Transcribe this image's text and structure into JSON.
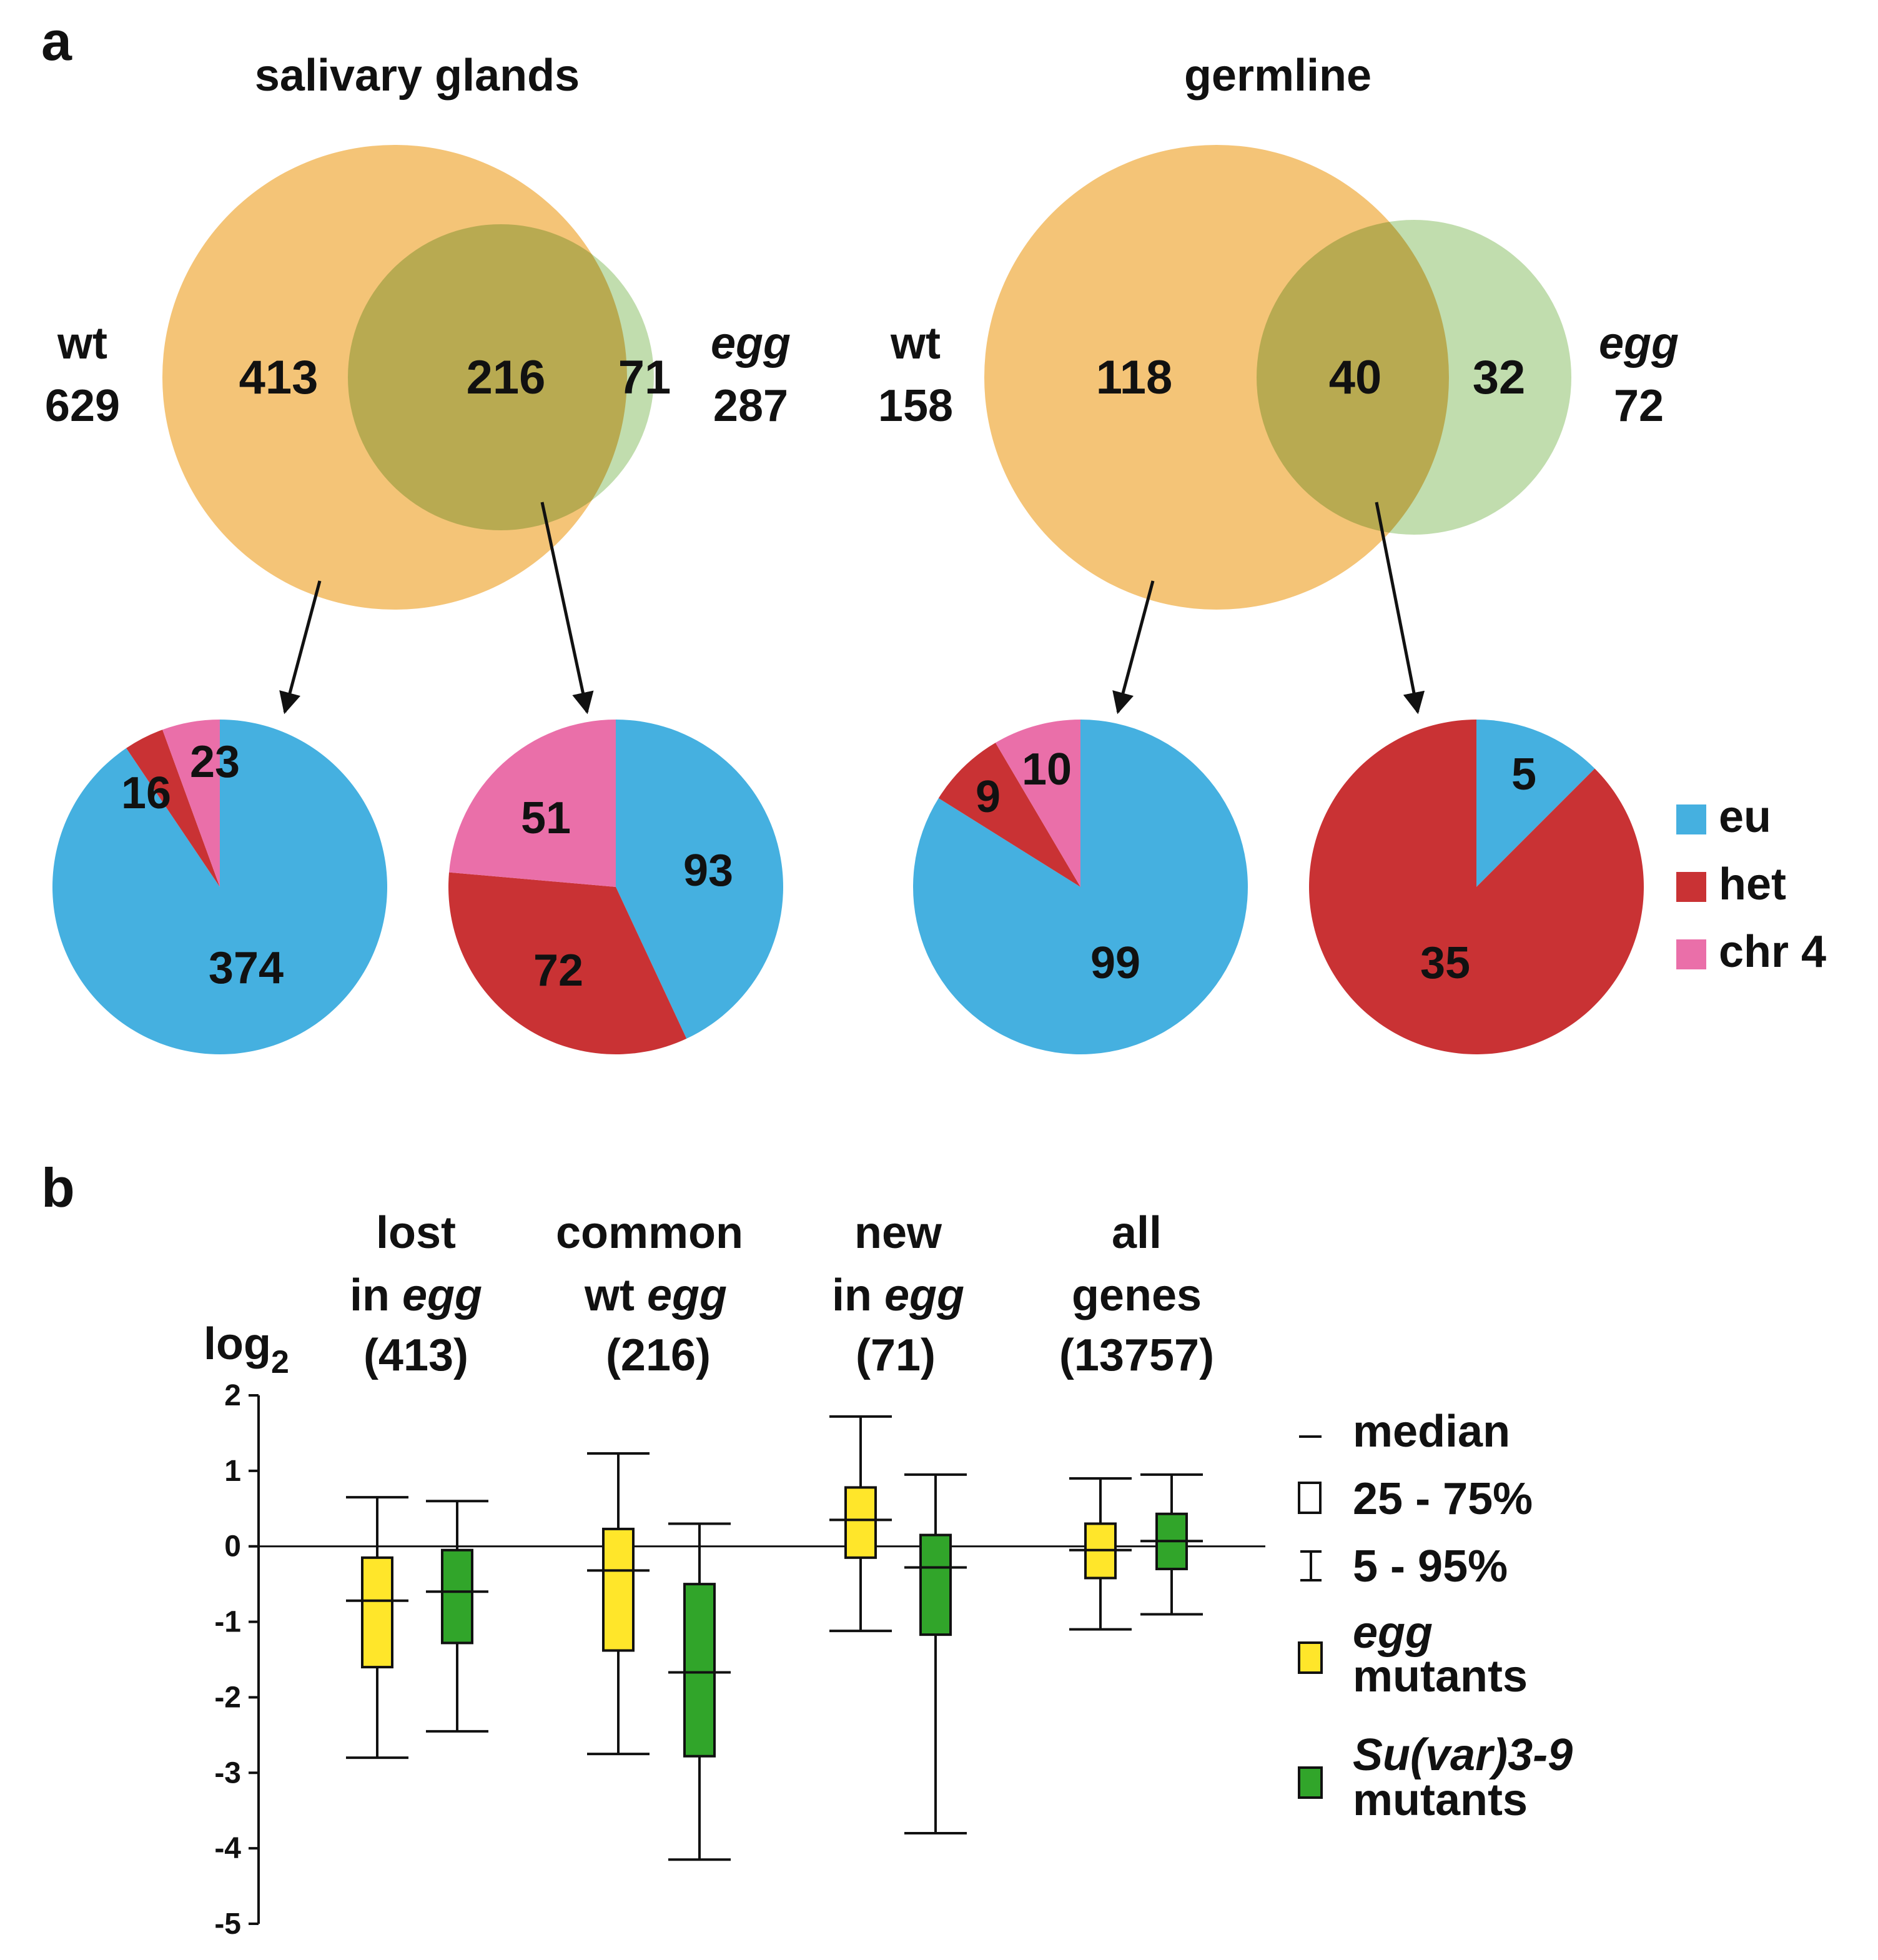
{
  "colors": {
    "wt_circle": "#f4c477",
    "egg_circle": "#b0d497",
    "overlap": "#b5bb62",
    "eu": "#45b0e0",
    "het": "#c93234",
    "chr4": "#ea6fa9",
    "egg_box": "#ffe62a",
    "suvar_box": "#31a52a",
    "line": "#111111"
  },
  "panel_a": {
    "label": "a",
    "venns": [
      {
        "title": "salivary glands",
        "wt_label": "wt",
        "wt_total": "629",
        "wt_only": "413",
        "common": "216",
        "egg_only": "71",
        "egg_label": "egg",
        "egg_total": "287"
      },
      {
        "title": "germline",
        "wt_label": "wt",
        "wt_total": "158",
        "wt_only": "118",
        "common": "40",
        "egg_only": "32",
        "egg_label": "egg",
        "egg_total": "72"
      }
    ],
    "legend": [
      {
        "key": "eu",
        "label": "eu"
      },
      {
        "key": "het",
        "label": "het"
      },
      {
        "key": "chr4",
        "label": "chr 4"
      }
    ]
  },
  "panel_b": {
    "label": "b",
    "legend": {
      "median": "median",
      "box": "25 - 75%",
      "whisker": "5 - 95%",
      "egg_line1": "egg",
      "egg_line2": "mutants",
      "suvar_line1": "Su(var)3-9",
      "suvar_line2": "mutants"
    }
  },
  "chart_data": [
    {
      "type": "pie",
      "title": "salivary glands: wt only (413)",
      "categories": [
        "eu",
        "het",
        "chr 4"
      ],
      "values": [
        374,
        16,
        23
      ]
    },
    {
      "type": "pie",
      "title": "salivary glands: common wt egg (216)",
      "categories": [
        "eu",
        "het",
        "chr 4"
      ],
      "values": [
        93,
        72,
        51
      ]
    },
    {
      "type": "pie",
      "title": "germline: wt only (118)",
      "categories": [
        "eu",
        "het",
        "chr 4"
      ],
      "values": [
        99,
        9,
        10
      ]
    },
    {
      "type": "pie",
      "title": "germline: common (40)",
      "categories": [
        "eu",
        "het",
        "chr 4"
      ],
      "values": [
        5,
        35,
        0
      ]
    },
    {
      "type": "boxplot",
      "ylabel": "log2",
      "ylim": [
        -5,
        2
      ],
      "yticks": [
        2,
        1,
        0,
        -1,
        -2,
        -3,
        -4,
        -5
      ],
      "groups": [
        {
          "line1": "lost",
          "line2a": "in ",
          "line2b": "egg",
          "line3": "(413)"
        },
        {
          "line1": "common",
          "line2a": "wt ",
          "line2b": "egg",
          "line3": "(216)"
        },
        {
          "line1": "new",
          "line2a": "in ",
          "line2b": "egg",
          "line3": "(71)"
        },
        {
          "line1": "all",
          "line2a": "genes",
          "line2b": "",
          "line3": "(13757)"
        }
      ],
      "series": [
        {
          "name": "egg mutants",
          "boxes": [
            {
              "p5": -2.8,
              "q1": -1.6,
              "median": -0.72,
              "q3": -0.15,
              "p95": 0.65
            },
            {
              "p5": -2.75,
              "q1": -1.38,
              "median": -0.32,
              "q3": 0.23,
              "p95": 1.23
            },
            {
              "p5": -1.12,
              "q1": -0.15,
              "median": 0.35,
              "q3": 0.78,
              "p95": 1.72
            },
            {
              "p5": -1.1,
              "q1": -0.42,
              "median": -0.05,
              "q3": 0.3,
              "p95": 0.9
            }
          ]
        },
        {
          "name": "Su(var)3-9 mutants",
          "boxes": [
            {
              "p5": -2.45,
              "q1": -1.28,
              "median": -0.6,
              "q3": -0.05,
              "p95": 0.6
            },
            {
              "p5": -4.15,
              "q1": -2.78,
              "median": -1.67,
              "q3": -0.5,
              "p95": 0.3
            },
            {
              "p5": -3.8,
              "q1": -1.17,
              "median": -0.28,
              "q3": 0.15,
              "p95": 0.95
            },
            {
              "p5": -0.9,
              "q1": -0.3,
              "median": 0.07,
              "q3": 0.43,
              "p95": 0.95
            }
          ]
        }
      ]
    }
  ]
}
